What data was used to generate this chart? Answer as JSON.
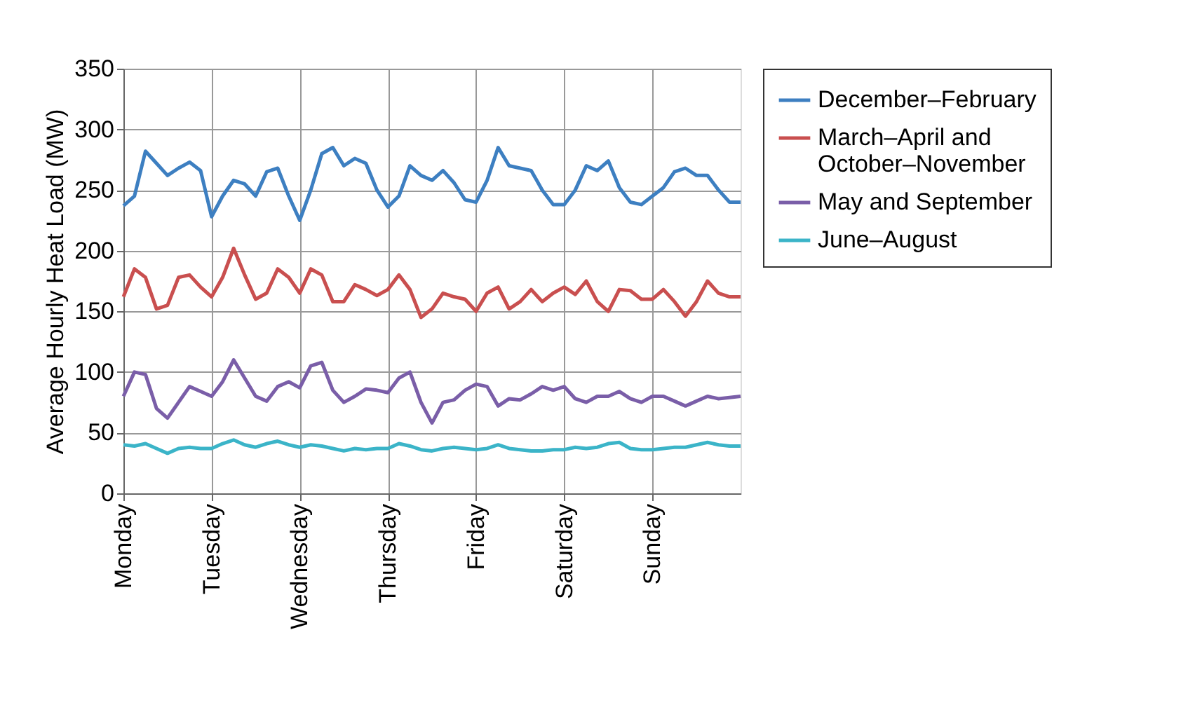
{
  "chart_data": {
    "type": "line",
    "ylabel": "Average Hourly Heat Load (MW)",
    "categories": [
      "Monday",
      null,
      null,
      null,
      null,
      null,
      null,
      null,
      "Tuesday",
      null,
      null,
      null,
      null,
      null,
      null,
      null,
      "Wednesday",
      null,
      null,
      null,
      null,
      null,
      null,
      null,
      "Thursday",
      null,
      null,
      null,
      null,
      null,
      null,
      null,
      "Friday",
      null,
      null,
      null,
      null,
      null,
      null,
      null,
      "Saturday",
      null,
      null,
      null,
      null,
      null,
      null,
      null,
      "Sunday",
      null,
      null,
      null,
      null,
      null,
      null,
      null,
      null
    ],
    "ylim": [
      0,
      350
    ],
    "yticks": [
      0,
      50,
      100,
      150,
      200,
      250,
      300,
      350
    ],
    "grid": true,
    "legend": "right",
    "line_style": "solid",
    "marker": "none",
    "series": [
      {
        "name": "December–February",
        "color": "#3d7fc1",
        "values": [
          237,
          245,
          282,
          272,
          262,
          268,
          273,
          266,
          228,
          245,
          258,
          255,
          245,
          265,
          268,
          245,
          225,
          250,
          280,
          285,
          270,
          276,
          272,
          250,
          236,
          245,
          270,
          262,
          258,
          266,
          256,
          242,
          240,
          258,
          285,
          270,
          268,
          266,
          250,
          238,
          238,
          250,
          270,
          266,
          274,
          252,
          240,
          238,
          245,
          252,
          265,
          268,
          262,
          262,
          250,
          240,
          240
        ]
      },
      {
        "name": "March–April and October–November",
        "color": "#c94f4f",
        "values": [
          162,
          185,
          178,
          152,
          155,
          178,
          180,
          170,
          162,
          178,
          202,
          180,
          160,
          165,
          185,
          178,
          165,
          185,
          180,
          158,
          158,
          172,
          168,
          163,
          168,
          180,
          168,
          145,
          152,
          165,
          162,
          160,
          150,
          165,
          170,
          152,
          158,
          168,
          158,
          165,
          170,
          164,
          175,
          158,
          150,
          168,
          167,
          160,
          160,
          168,
          158,
          146,
          158,
          175,
          165,
          162,
          162
        ]
      },
      {
        "name": "May and September",
        "color": "#7a5ea8",
        "values": [
          80,
          100,
          98,
          70,
          62,
          75,
          88,
          84,
          80,
          92,
          110,
          95,
          80,
          76,
          88,
          92,
          87,
          105,
          108,
          85,
          75,
          80,
          86,
          85,
          83,
          95,
          100,
          75,
          58,
          75,
          77,
          85,
          90,
          88,
          72,
          78,
          77,
          82,
          88,
          85,
          88,
          78,
          75,
          80,
          80,
          84,
          78,
          75,
          80,
          80,
          76,
          72,
          76,
          80,
          78,
          79,
          80
        ]
      },
      {
        "name": "June–August",
        "color": "#3bb4c8",
        "values": [
          40,
          39,
          41,
          37,
          33,
          37,
          38,
          37,
          37,
          41,
          44,
          40,
          38,
          41,
          43,
          40,
          38,
          40,
          39,
          37,
          35,
          37,
          36,
          37,
          37,
          41,
          39,
          36,
          35,
          37,
          38,
          37,
          36,
          37,
          40,
          37,
          36,
          35,
          35,
          36,
          36,
          38,
          37,
          38,
          41,
          42,
          37,
          36,
          36,
          37,
          38,
          38,
          40,
          42,
          40,
          39,
          39
        ]
      }
    ]
  }
}
